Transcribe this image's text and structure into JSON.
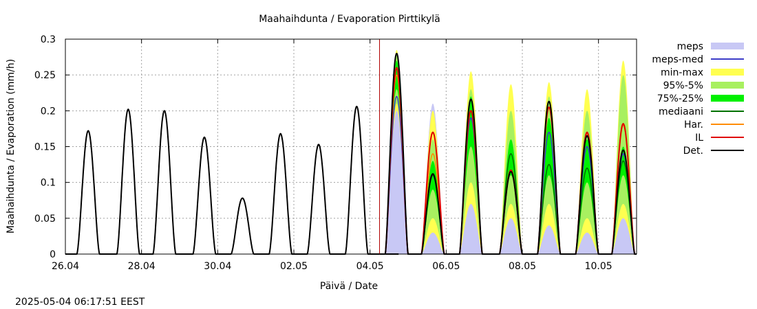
{
  "chart_data": {
    "type": "line",
    "title": "Maahaihdunta / Evaporation  Pirttikylä",
    "xlabel": "Päivä / Date",
    "ylabel": "Maahaihdunta / Evaporation (mm/h)",
    "timestamp": "2025-05-04 06:17:51 EEST",
    "ylim": [
      0,
      0.3
    ],
    "yticks": [
      "0",
      "0.05",
      "0.1",
      "0.15",
      "0.2",
      "0.25",
      "0.3"
    ],
    "xlim_days": [
      0,
      15
    ],
    "xticks": [
      {
        "day": 0,
        "label": "26.04"
      },
      {
        "day": 2,
        "label": "28.04"
      },
      {
        "day": 4,
        "label": "30.04"
      },
      {
        "day": 6,
        "label": "02.05"
      },
      {
        "day": 8,
        "label": "04.05"
      },
      {
        "day": 10,
        "label": "06.05"
      },
      {
        "day": 12,
        "label": "08.05"
      },
      {
        "day": 14,
        "label": "10.05"
      }
    ],
    "now_day": 8.25,
    "legend": {
      "placement": "right",
      "entries": [
        {
          "label": "meps",
          "kind": "band",
          "color": "#c8c8f5"
        },
        {
          "label": "meps-med",
          "kind": "line",
          "color": "#3b3bc8"
        },
        {
          "label": "min-max",
          "kind": "band",
          "color": "#ffff50"
        },
        {
          "label": "95%-5%",
          "kind": "band",
          "color": "#a8f060"
        },
        {
          "label": "75%-25%",
          "kind": "band",
          "color": "#00f000"
        },
        {
          "label": "mediaani",
          "kind": "line",
          "color": "#007000"
        },
        {
          "label": "Har.",
          "kind": "line",
          "color": "#ff8c00"
        },
        {
          "label": "IL",
          "kind": "line",
          "color": "#e00000"
        },
        {
          "label": "Det.",
          "kind": "line",
          "color": "#000000"
        }
      ]
    },
    "observed_peaks": [
      {
        "day": 0.6,
        "peak": 0.172
      },
      {
        "day": 1.65,
        "peak": 0.202
      },
      {
        "day": 2.6,
        "peak": 0.2
      },
      {
        "day": 3.65,
        "peak": 0.163
      },
      {
        "day": 4.65,
        "peak": 0.078
      },
      {
        "day": 5.65,
        "peak": 0.168
      },
      {
        "day": 6.65,
        "peak": 0.153
      },
      {
        "day": 7.65,
        "peak": 0.206
      }
    ],
    "forecast_days": [
      {
        "day": 8.7,
        "det": 0.28,
        "il": 0.26,
        "har": 0.25,
        "median": 0.25,
        "q25": 0.23,
        "q75": 0.27,
        "p5": 0.21,
        "p95": 0.28,
        "min": 0.2,
        "max": 0.285,
        "meps": 0.24,
        "meps_med": 0.22
      },
      {
        "day": 9.65,
        "det": 0.112,
        "il": 0.17,
        "har": 0.14,
        "median": 0.11,
        "q25": 0.09,
        "q75": 0.13,
        "p5": 0.05,
        "p95": 0.16,
        "min": 0.03,
        "max": 0.2,
        "meps": 0.21,
        "meps_med": 0.11
      },
      {
        "day": 10.65,
        "det": 0.216,
        "il": 0.2,
        "har": 0.2,
        "median": 0.2,
        "q25": 0.15,
        "q75": 0.22,
        "p5": 0.1,
        "p95": 0.23,
        "min": 0.07,
        "max": 0.255,
        "meps": 0.2,
        "meps_med": 0.19
      },
      {
        "day": 11.7,
        "det": 0.115,
        "il": 0.117,
        "har": 0.115,
        "median": 0.14,
        "q25": 0.11,
        "q75": 0.16,
        "p5": 0.07,
        "p95": 0.2,
        "min": 0.05,
        "max": 0.237,
        "meps": 0.12,
        "meps_med": 0.115
      },
      {
        "day": 12.7,
        "det": 0.213,
        "il": 0.205,
        "har": 0.205,
        "median": 0.125,
        "q25": 0.11,
        "q75": 0.19,
        "p5": 0.07,
        "p95": 0.22,
        "min": 0.04,
        "max": 0.24,
        "meps": 0.18,
        "meps_med": 0.17
      },
      {
        "day": 13.7,
        "det": 0.165,
        "il": 0.17,
        "har": 0.168,
        "median": 0.12,
        "q25": 0.1,
        "q75": 0.16,
        "p5": 0.05,
        "p95": 0.2,
        "min": 0.03,
        "max": 0.23,
        "meps": 0.15,
        "meps_med": 0.15
      },
      {
        "day": 14.65,
        "det": 0.145,
        "il": 0.182,
        "har": 0.18,
        "median": 0.13,
        "q25": 0.11,
        "q75": 0.15,
        "p5": 0.07,
        "p95": 0.25,
        "min": 0.05,
        "max": 0.27,
        "meps": 0.15,
        "meps_med": 0.14
      }
    ]
  }
}
